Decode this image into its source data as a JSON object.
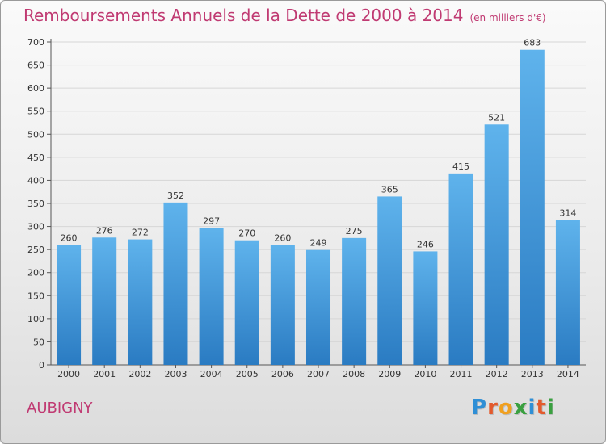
{
  "chart": {
    "title": "Remboursements Annuels de la Dette de 2000 à 2014",
    "unit_note": "(en milliers d'€)"
  },
  "commune": "AUBIGNY",
  "logo": {
    "text": "Proxiti",
    "letters": [
      {
        "ch": "P",
        "color": "#2f8fd6"
      },
      {
        "ch": "r",
        "color": "#e35a2d"
      },
      {
        "ch": "o",
        "color": "#f0a020"
      },
      {
        "ch": "x",
        "color": "#3aa040"
      },
      {
        "ch": "i",
        "color": "#2f8fd6"
      },
      {
        "ch": "t",
        "color": "#e35a2d"
      },
      {
        "ch": "i",
        "color": "#3aa040"
      }
    ]
  },
  "chart_data": {
    "type": "bar",
    "title": "Remboursements Annuels de la Dette de 2000 à 2014",
    "subtitle": "(en milliers d'€)",
    "categories": [
      "2000",
      "2001",
      "2002",
      "2003",
      "2004",
      "2005",
      "2006",
      "2007",
      "2008",
      "2009",
      "2010",
      "2011",
      "2012",
      "2013",
      "2014"
    ],
    "values": [
      260,
      276,
      272,
      352,
      297,
      270,
      260,
      249,
      275,
      365,
      246,
      415,
      521,
      683,
      314
    ],
    "ylim": [
      0,
      700
    ],
    "yticks": [
      0,
      50,
      100,
      150,
      200,
      250,
      300,
      350,
      400,
      450,
      500,
      550,
      600,
      650,
      700
    ],
    "grid": true,
    "bar_color": "#3b8fd8"
  }
}
